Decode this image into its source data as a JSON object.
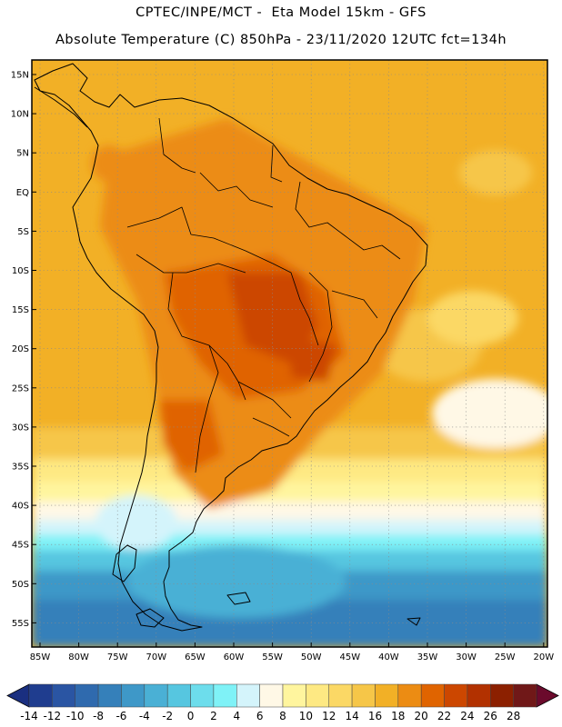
{
  "header": {
    "line1": "CPTEC/INPE/MCT -  Eta Model 15km - GFS",
    "line2": "Absolute Temperature (C) 850hPa - 23/11/2020 12UTC fct=134h"
  },
  "axes": {
    "lat_labels": [
      "15N",
      "10N",
      "5N",
      "EQ",
      "5S",
      "10S",
      "15S",
      "20S",
      "25S",
      "30S",
      "35S",
      "40S",
      "45S",
      "50S",
      "55S"
    ],
    "lon_labels": [
      "85W",
      "80W",
      "75W",
      "70W",
      "65W",
      "60W",
      "55W",
      "50W",
      "45W",
      "40W",
      "35W",
      "30W",
      "25W",
      "20W"
    ]
  },
  "colorbar": {
    "labels": [
      "-14",
      "-12",
      "-10",
      "-8",
      "-6",
      "-4",
      "-2",
      "0",
      "2",
      "4",
      "6",
      "8",
      "10",
      "12",
      "14",
      "16",
      "18",
      "20",
      "22",
      "24",
      "26",
      "28"
    ],
    "colors": [
      "#1f3d8f",
      "#2a55a3",
      "#2f6aae",
      "#3580ba",
      "#3e98c8",
      "#4ab0d5",
      "#56c6e0",
      "#6dddec",
      "#7ff2f7",
      "#d4f4fb",
      "#fff8e6",
      "#fff59e",
      "#fee983",
      "#fbd865",
      "#f6c648",
      "#f2b026",
      "#ec8c13",
      "#e06400",
      "#cc4700",
      "#b23100",
      "#8c2000",
      "#701818"
    ],
    "under_color": "#1a2f80",
    "over_color": "#6b0a2c"
  }
}
